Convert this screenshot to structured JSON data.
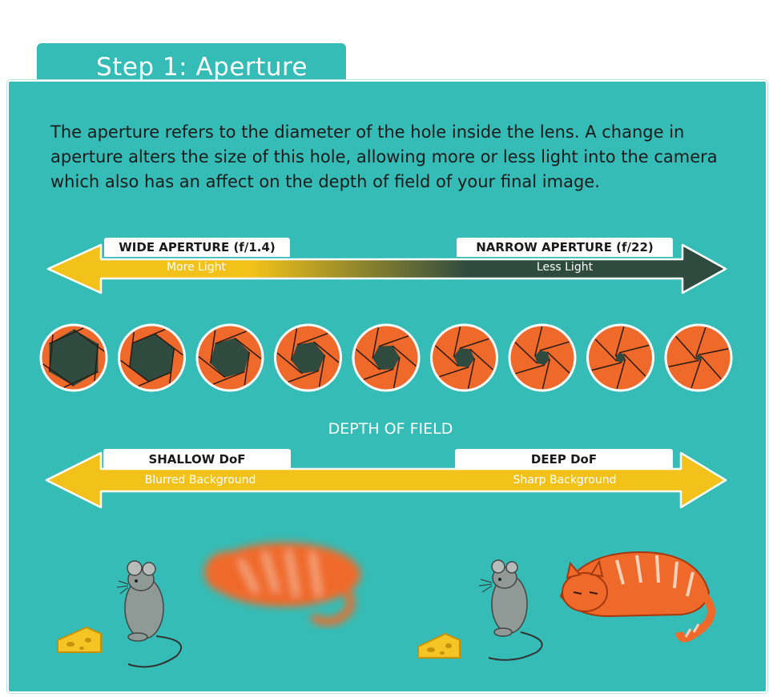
{
  "tab": {
    "title": "Step 1: Aperture"
  },
  "intro": {
    "text": "The aperture refers to the diameter of the hole inside the lens. A change in aperture alters the size of this hole, allowing more or less light into the camera which also has an affect on the depth of field of your final image."
  },
  "aperture_scale": {
    "left_label": "WIDE APERTURE (f/1.4)",
    "left_sub": "More Light",
    "right_label": "NARROW APERTURE (f/22)",
    "right_sub": "Less Light",
    "left_color": "#f2c21a",
    "right_color": "#2f4a3f"
  },
  "irises": {
    "count": 9,
    "outer_color": "#ef6a2a",
    "hole_color": "#2f4a3f",
    "openings": [
      1.0,
      0.86,
      0.72,
      0.6,
      0.48,
      0.37,
      0.27,
      0.18,
      0.1
    ]
  },
  "dof": {
    "title": "DEPTH OF FIELD",
    "left_label": "SHALLOW DoF",
    "left_sub": "Blurred Background",
    "right_label": "DEEP DoF",
    "right_sub": "Sharp Background",
    "arrow_color": "#f2c21a"
  },
  "colors": {
    "panel": "#35bcb6",
    "cat": "#ef6a2a",
    "mouse": "#8f9a97",
    "cheese": "#f4c524"
  }
}
